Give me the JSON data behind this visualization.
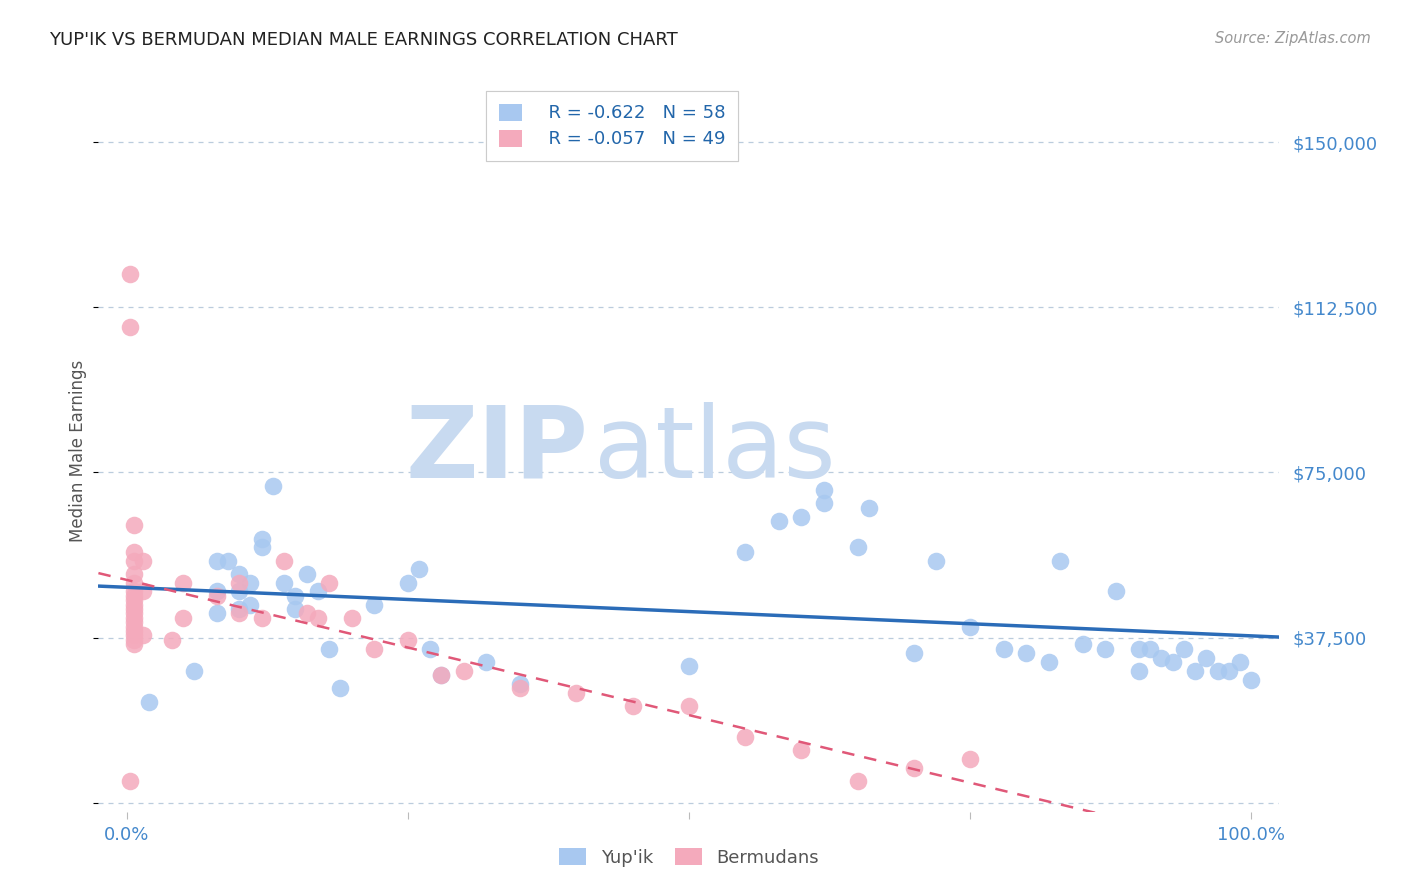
{
  "title": "YUP'IK VS BERMUDAN MEDIAN MALE EARNINGS CORRELATION CHART",
  "source": "Source: ZipAtlas.com",
  "ylabel": "Median Male Earnings",
  "yticks": [
    0,
    37500,
    75000,
    112500,
    150000
  ],
  "ytick_labels": [
    "",
    "$37,500",
    "$75,000",
    "$112,500",
    "$150,000"
  ],
  "ylim": [
    -2000,
    162000
  ],
  "xlim": [
    -0.025,
    1.025
  ],
  "legend_blue_R": "R = -0.622",
  "legend_blue_N": "N = 58",
  "legend_pink_R": "R = -0.057",
  "legend_pink_N": "N = 49",
  "blue_color": "#A8C8F0",
  "pink_color": "#F4AABC",
  "blue_line_color": "#2B6CB8",
  "pink_line_color": "#E05878",
  "watermark_zip_color": "#C8DAF0",
  "watermark_atlas_color": "#C8DAF0",
  "blue_x": [
    0.02,
    0.06,
    0.08,
    0.08,
    0.08,
    0.09,
    0.1,
    0.1,
    0.1,
    0.11,
    0.11,
    0.12,
    0.12,
    0.13,
    0.14,
    0.15,
    0.15,
    0.16,
    0.17,
    0.18,
    0.19,
    0.22,
    0.25,
    0.26,
    0.27,
    0.28,
    0.32,
    0.35,
    0.5,
    0.55,
    0.58,
    0.6,
    0.62,
    0.62,
    0.65,
    0.66,
    0.7,
    0.72,
    0.75,
    0.78,
    0.8,
    0.82,
    0.83,
    0.85,
    0.87,
    0.88,
    0.9,
    0.9,
    0.91,
    0.92,
    0.93,
    0.94,
    0.95,
    0.96,
    0.97,
    0.98,
    0.99,
    1.0
  ],
  "blue_y": [
    23000,
    30000,
    55000,
    48000,
    43000,
    55000,
    52000,
    48000,
    44000,
    50000,
    45000,
    60000,
    58000,
    72000,
    50000,
    47000,
    44000,
    52000,
    48000,
    35000,
    26000,
    45000,
    50000,
    53000,
    35000,
    29000,
    32000,
    27000,
    31000,
    57000,
    64000,
    65000,
    71000,
    68000,
    58000,
    67000,
    34000,
    55000,
    40000,
    35000,
    34000,
    32000,
    55000,
    36000,
    35000,
    48000,
    35000,
    30000,
    35000,
    33000,
    32000,
    35000,
    30000,
    33000,
    30000,
    30000,
    32000,
    28000
  ],
  "pink_x": [
    0.003,
    0.003,
    0.003,
    0.007,
    0.007,
    0.007,
    0.007,
    0.007,
    0.007,
    0.007,
    0.007,
    0.007,
    0.007,
    0.007,
    0.007,
    0.007,
    0.007,
    0.007,
    0.007,
    0.007,
    0.007,
    0.015,
    0.015,
    0.015,
    0.04,
    0.05,
    0.05,
    0.08,
    0.1,
    0.1,
    0.12,
    0.14,
    0.16,
    0.17,
    0.18,
    0.2,
    0.22,
    0.25,
    0.28,
    0.3,
    0.35,
    0.4,
    0.45,
    0.5,
    0.55,
    0.6,
    0.65,
    0.7,
    0.75
  ],
  "pink_y": [
    120000,
    108000,
    5000,
    63000,
    57000,
    55000,
    52000,
    50000,
    48000,
    47000,
    46000,
    45000,
    44000,
    43000,
    42000,
    41000,
    40000,
    39000,
    38000,
    37000,
    36000,
    55000,
    48000,
    38000,
    37000,
    50000,
    42000,
    47000,
    43000,
    50000,
    42000,
    55000,
    43000,
    42000,
    50000,
    42000,
    35000,
    37000,
    29000,
    30000,
    26000,
    25000,
    22000,
    22000,
    15000,
    12000,
    5000,
    8000,
    10000
  ]
}
